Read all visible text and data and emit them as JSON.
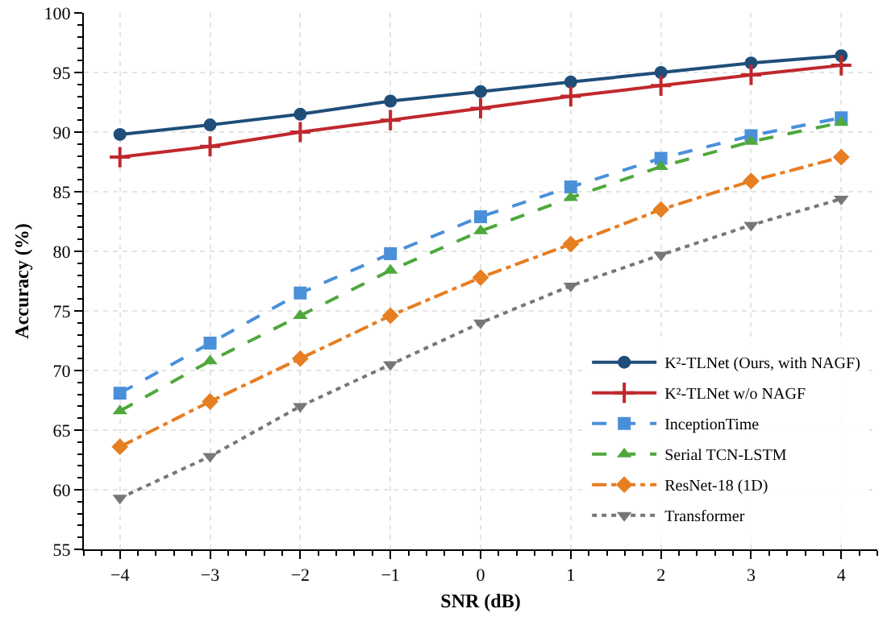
{
  "chart_data": {
    "type": "line",
    "xlabel": "SNR (dB)",
    "ylabel": "Accuracy (%)",
    "x": [
      -4,
      -3,
      -2,
      -1,
      0,
      1,
      2,
      3,
      4
    ],
    "xlim": [
      -4.4,
      4.4
    ],
    "xticks": [
      {
        "value": -4,
        "label": "−4"
      },
      {
        "value": -3,
        "label": "−3"
      },
      {
        "value": -2,
        "label": "−2"
      },
      {
        "value": -1,
        "label": "−1"
      },
      0,
      1,
      2,
      3,
      4
    ],
    "ylim": [
      55,
      100
    ],
    "yticks": [
      55,
      60,
      65,
      70,
      75,
      80,
      85,
      90,
      95,
      100
    ],
    "grid": true,
    "legend": "bottom right",
    "series": [
      {
        "name": "K²-TLNet (Ours, with NAGF)",
        "color": "#1f4e79",
        "marker": "circle",
        "line_style": "solid",
        "values": [
          89.8,
          90.6,
          91.5,
          92.6,
          93.4,
          94.2,
          95.0,
          95.8,
          96.4
        ]
      },
      {
        "name": "K²-TLNet w/o NAGF",
        "color": "#c0282d",
        "marker": "cross",
        "line_style": "solid",
        "values": [
          87.9,
          88.8,
          90.0,
          91.0,
          92.0,
          93.0,
          93.9,
          94.8,
          95.6
        ]
      },
      {
        "name": "InceptionTime",
        "color": "#4a90d9",
        "marker": "square",
        "line_style": "dashed",
        "values": [
          68.1,
          72.3,
          76.5,
          79.8,
          82.9,
          85.4,
          87.8,
          89.7,
          91.2
        ]
      },
      {
        "name": "Serial TCN-LSTM",
        "color": "#4fa83d",
        "marker": "triangle",
        "line_style": "dashed",
        "values": [
          66.6,
          70.8,
          74.6,
          78.4,
          81.7,
          84.5,
          87.1,
          89.2,
          90.8
        ]
      },
      {
        "name": "ResNet-18 (1D)",
        "color": "#e67e22",
        "marker": "diamond",
        "line_style": "dashdot",
        "values": [
          63.6,
          67.4,
          71.0,
          74.6,
          77.8,
          80.6,
          83.5,
          85.9,
          87.9
        ]
      },
      {
        "name": "Transformer",
        "color": "#777777",
        "marker": "triangle-down",
        "line_style": "dotted",
        "values": [
          59.3,
          62.8,
          67.0,
          70.5,
          74.0,
          77.1,
          79.7,
          82.2,
          84.4
        ]
      }
    ]
  }
}
